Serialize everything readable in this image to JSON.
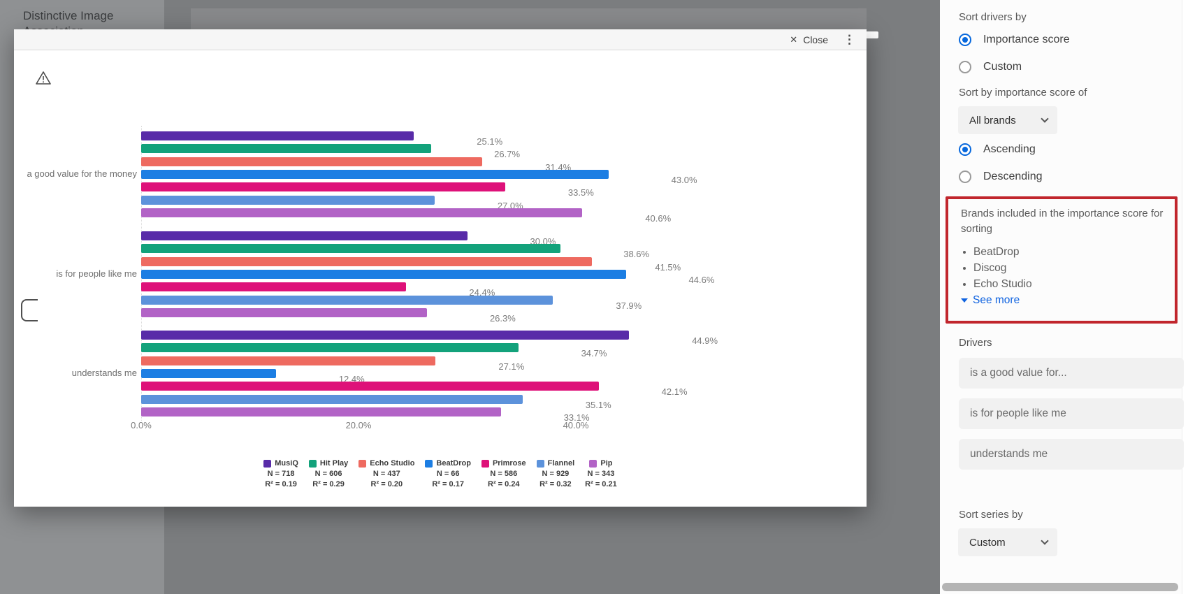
{
  "background": {
    "panel_title_line1": "Distinctive Image",
    "panel_title_line2": "Association"
  },
  "modal": {
    "close_icon": "✕",
    "close_label": "Close",
    "kebab_icon": "⋮"
  },
  "chart_data": {
    "type": "bar",
    "orientation": "horizontal",
    "title": "",
    "categories": [
      "a good value for the money",
      "is for people like me",
      "understands me"
    ],
    "series": [
      {
        "name": "MusiQ",
        "color": "#582BA8",
        "n_label": "N = 718",
        "r2_label": "R² = 0.19",
        "values": [
          25.1,
          30.0,
          44.9
        ]
      },
      {
        "name": "Hit Play",
        "color": "#13A27B",
        "n_label": "N = 606",
        "r2_label": "R² = 0.29",
        "values": [
          26.7,
          38.6,
          34.7
        ]
      },
      {
        "name": "Echo Studio",
        "color": "#EE6A60",
        "n_label": "N = 437",
        "r2_label": "R² = 0.20",
        "values": [
          31.4,
          41.5,
          27.1
        ]
      },
      {
        "name": "BeatDrop",
        "color": "#1C7EE3",
        "n_label": "N = 66",
        "r2_label": "R² = 0.17",
        "values": [
          43.0,
          44.6,
          12.4
        ]
      },
      {
        "name": "Primrose",
        "color": "#DE1179",
        "n_label": "N = 586",
        "r2_label": "R² = 0.24",
        "values": [
          33.5,
          24.4,
          42.1
        ]
      },
      {
        "name": "Flannel",
        "color": "#5C92DB",
        "n_label": "N = 929",
        "r2_label": "R² = 0.32",
        "values": [
          27.0,
          37.9,
          35.1
        ]
      },
      {
        "name": "Pip",
        "color": "#B263C6",
        "n_label": "N = 343",
        "r2_label": "R² = 0.21",
        "values": [
          40.6,
          26.3,
          33.1
        ]
      }
    ],
    "x_ticks": [
      {
        "label": "0.0%",
        "value": 0
      },
      {
        "label": "20.0%",
        "value": 20
      },
      {
        "label": "40.0%",
        "value": 40
      }
    ],
    "xlim": [
      0,
      60
    ],
    "value_suffix": "%",
    "legend_position": "bottom"
  },
  "sidebar": {
    "sort_drivers_by_label": "Sort drivers by",
    "sort_drivers_options": [
      {
        "label": "Importance score",
        "selected": true
      },
      {
        "label": "Custom",
        "selected": false
      }
    ],
    "sort_by_importance_label": "Sort by importance score of",
    "brand_dropdown_value": "All brands",
    "direction_options": [
      {
        "label": "Ascending",
        "selected": true
      },
      {
        "label": "Descending",
        "selected": false
      }
    ],
    "brands_included_title": "Brands included in the importance score for sorting",
    "brands_included": [
      "BeatDrop",
      "Discog",
      "Echo Studio"
    ],
    "see_more_label": "See more",
    "drivers_label": "Drivers",
    "driver_fields": [
      "is a good value for...",
      "is for people like me",
      "understands me"
    ],
    "sort_series_label": "Sort series by",
    "series_dropdown_value": "Custom"
  },
  "colors": {
    "annotation_red": "#C1262D",
    "accent_blue": "#0768DD",
    "link_blue": "#1063E0"
  }
}
